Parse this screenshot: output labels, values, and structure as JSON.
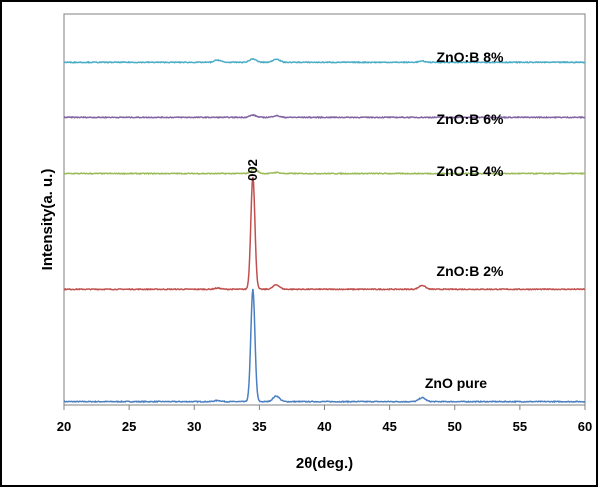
{
  "chart_data": {
    "type": "line",
    "title": "",
    "xlabel": "2θ(deg.)",
    "ylabel": "Intensity(a. u.)",
    "xlim": [
      20,
      60
    ],
    "x_ticks": [
      "20",
      "25",
      "30",
      "35",
      "40",
      "45",
      "50",
      "55",
      "60"
    ],
    "y_ticks_shown": false,
    "grid": false,
    "legend": "none",
    "annotations": [
      {
        "text": "002",
        "x": 34.5
      }
    ],
    "series": [
      {
        "name": "ZnO pure",
        "color": "#4a7fc1",
        "baseline": 0.0,
        "peaks": [
          {
            "x": 31.8,
            "height": 0.01
          },
          {
            "x": 34.5,
            "height": 1.0
          },
          {
            "x": 36.3,
            "height": 0.05
          },
          {
            "x": 47.5,
            "height": 0.035
          }
        ]
      },
      {
        "name": "ZnO:B 2%",
        "color": "#c0504d",
        "baseline": 1.0,
        "peaks": [
          {
            "x": 31.8,
            "height": 0.01
          },
          {
            "x": 34.5,
            "height": 1.0
          },
          {
            "x": 36.3,
            "height": 0.04
          },
          {
            "x": 47.5,
            "height": 0.035
          }
        ]
      },
      {
        "name": "ZnO:B 4%",
        "color": "#9bbb59",
        "baseline": 2.03,
        "peaks": [
          {
            "x": 34.6,
            "height": 0.04
          },
          {
            "x": 36.3,
            "height": 0.01
          }
        ]
      },
      {
        "name": "ZnO:B 6%",
        "color": "#8064a2",
        "baseline": 2.53,
        "peaks": [
          {
            "x": 34.5,
            "height": 0.02
          },
          {
            "x": 36.3,
            "height": 0.015
          }
        ]
      },
      {
        "name": "ZnO:B 8%",
        "color": "#4bacc6",
        "baseline": 3.02,
        "peaks": [
          {
            "x": 31.8,
            "height": 0.02
          },
          {
            "x": 34.5,
            "height": 0.03
          },
          {
            "x": 36.3,
            "height": 0.03
          },
          {
            "x": 47.5,
            "height": 0.01
          }
        ]
      }
    ]
  }
}
